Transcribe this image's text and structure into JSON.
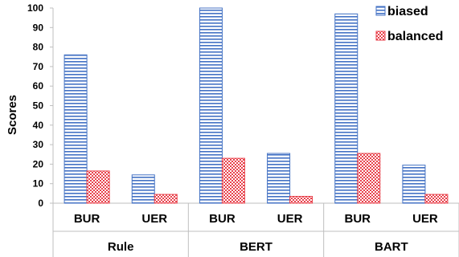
{
  "chart_data": {
    "type": "bar",
    "ylabel": "Scores",
    "ylim": [
      0,
      100
    ],
    "yticks": [
      0,
      10,
      20,
      30,
      40,
      50,
      60,
      70,
      80,
      90,
      100
    ],
    "grid": false,
    "legend_position": "top-right",
    "groups": [
      {
        "label": "Rule",
        "categories": [
          "BUR",
          "UER"
        ]
      },
      {
        "label": "BERT",
        "categories": [
          "BUR",
          "UER"
        ]
      },
      {
        "label": "BART",
        "categories": [
          "BUR",
          "UER"
        ]
      }
    ],
    "categories": [
      "BUR",
      "UER",
      "BUR",
      "UER",
      "BUR",
      "UER"
    ],
    "series": [
      {
        "name": "biased",
        "values": [
          76,
          14.5,
          100,
          25.5,
          97,
          19.5
        ],
        "color": "#4472c4",
        "pattern": "horizontal-lines"
      },
      {
        "name": "balanced",
        "values": [
          16.5,
          4.5,
          23,
          3.5,
          25.5,
          4.5
        ],
        "color": "#e8424c",
        "pattern": "checker"
      }
    ]
  }
}
